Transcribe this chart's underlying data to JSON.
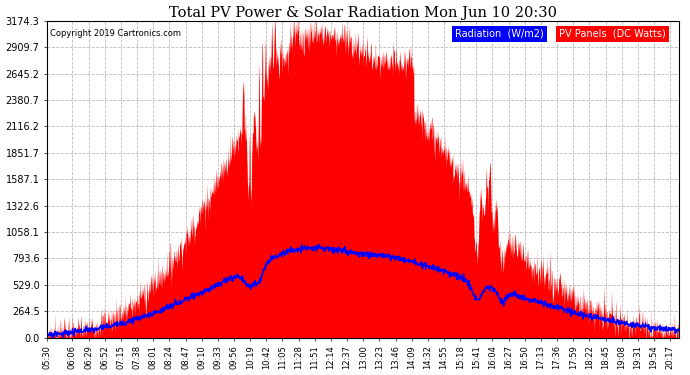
{
  "title": "Total PV Power & Solar Radiation Mon Jun 10 20:30",
  "copyright": "Copyright 2019 Cartronics.com",
  "bg_color": "#ffffff",
  "plot_bg_color": "#ffffff",
  "grid_color": "#aaaaaa",
  "pv_color": "#ff0000",
  "radiation_color": "#0000ff",
  "legend_radiation_bg": "#0000ff",
  "legend_pv_bg": "#ff0000",
  "ymax": 3174.3,
  "yticks": [
    0.0,
    264.5,
    529.0,
    793.6,
    1058.1,
    1322.6,
    1587.1,
    1851.7,
    2116.2,
    2380.7,
    2645.2,
    2909.7,
    3174.3
  ],
  "time_labels": [
    "05:30",
    "06:06",
    "06:29",
    "06:52",
    "07:15",
    "07:38",
    "08:01",
    "08:24",
    "08:47",
    "09:10",
    "09:33",
    "09:56",
    "10:19",
    "10:42",
    "11:05",
    "11:28",
    "11:51",
    "12:14",
    "12:37",
    "13:00",
    "13:23",
    "13:46",
    "14:09",
    "14:32",
    "14:55",
    "15:18",
    "15:41",
    "16:04",
    "16:27",
    "16:50",
    "17:13",
    "17:36",
    "17:59",
    "18:22",
    "18:45",
    "19:08",
    "19:31",
    "19:54",
    "20:17"
  ]
}
